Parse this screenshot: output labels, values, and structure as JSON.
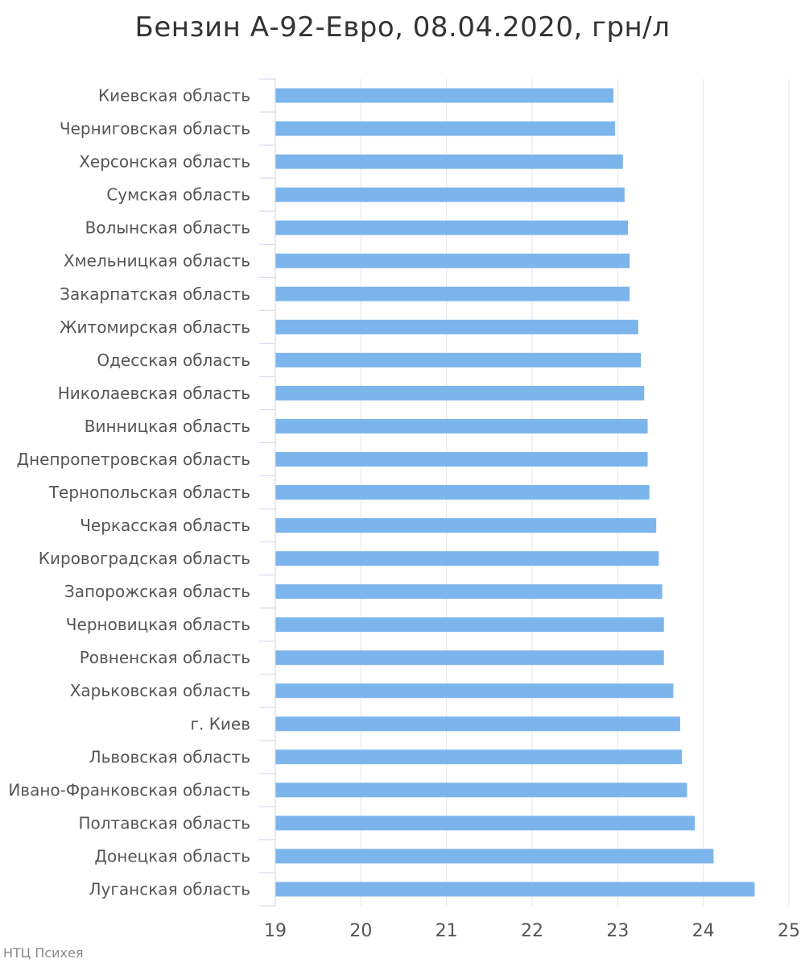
{
  "chart_data": {
    "type": "bar",
    "orientation": "horizontal",
    "title": "Бензин А-92-Евро, 08.04.2020, грн/л",
    "xlabel": "",
    "ylabel": "",
    "xlim": [
      19,
      25
    ],
    "ticks": [
      "19",
      "20",
      "21",
      "22",
      "23",
      "24",
      "25"
    ],
    "grid": true,
    "categories": [
      "Киевская область",
      "Черниговская область",
      "Херсонская область",
      "Сумская область",
      "Волынская область",
      "Хмельницкая область",
      "Закарпатская область",
      "Житомирская область",
      "Одесская область",
      "Николаевская область",
      "Винницкая область",
      "Днепропетровская область",
      "Тернопольская область",
      "Черкасская область",
      "Кировоградская область",
      "Запорожская область",
      "Черновицкая область",
      "Ровненская область",
      "Харьковская область",
      "г. Киев",
      "Львовская область",
      "Ивано-Франковская область",
      "Полтавская область",
      "Донецкая область",
      "Луганская область"
    ],
    "values": [
      22.95,
      22.97,
      23.06,
      23.08,
      23.12,
      23.14,
      23.14,
      23.24,
      23.27,
      23.31,
      23.35,
      23.35,
      23.37,
      23.45,
      23.48,
      23.52,
      23.54,
      23.54,
      23.65,
      23.73,
      23.75,
      23.81,
      23.9,
      24.12,
      24.6
    ]
  },
  "colors": {
    "bar": "#7cb5ec",
    "grid": "#e6e6e6",
    "axis": "#ccd6eb",
    "label": "#555555"
  },
  "credit": "НТЦ Психея"
}
